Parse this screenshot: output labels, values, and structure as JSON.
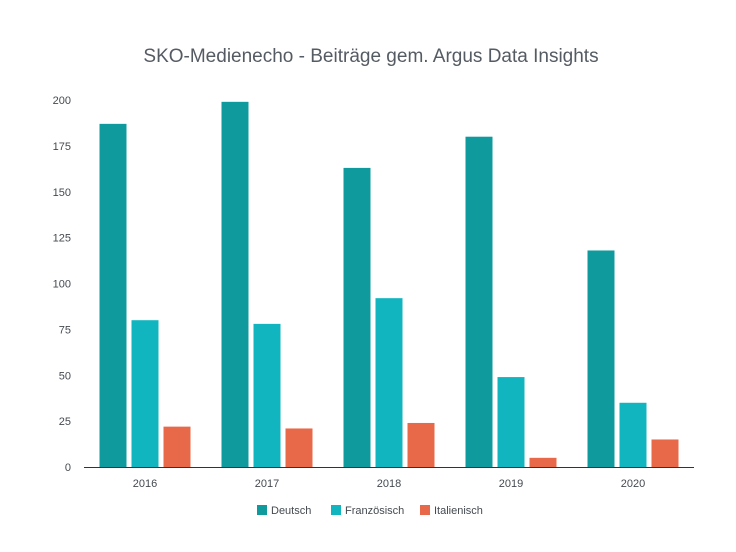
{
  "chart_data": {
    "type": "bar",
    "title": "SKO-Medienecho - Beiträge gem. Argus Data Insights",
    "xlabel": "",
    "ylabel": "",
    "categories": [
      "2016",
      "2017",
      "2018",
      "2019",
      "2020"
    ],
    "series": [
      {
        "name": "Deutsch",
        "color": "#0f9a9e",
        "values": [
          187,
          199,
          163,
          180,
          118
        ]
      },
      {
        "name": "Französisch",
        "color": "#10b5bf",
        "values": [
          80,
          78,
          92,
          49,
          35
        ]
      },
      {
        "name": "Italienisch",
        "color": "#e8694a",
        "values": [
          22,
          21,
          24,
          5,
          15
        ]
      }
    ],
    "ylim": [
      0,
      200
    ],
    "yticks": [
      "0",
      "25",
      "50",
      "75",
      "100",
      "125",
      "150",
      "175",
      "200"
    ],
    "grid": false,
    "legend_position": "bottom"
  }
}
